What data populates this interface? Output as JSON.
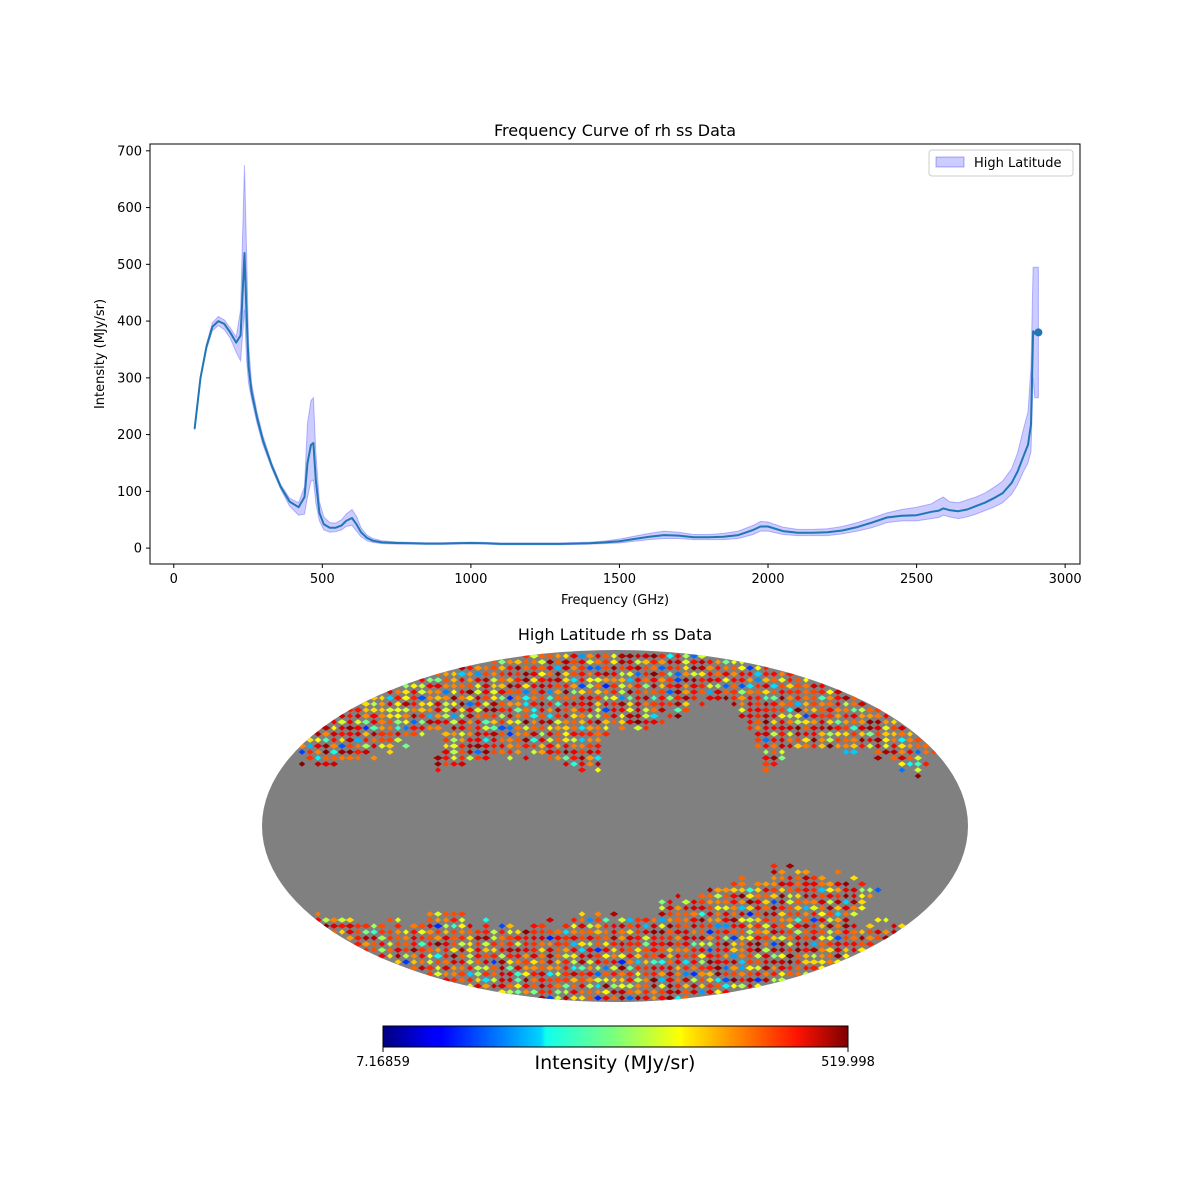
{
  "chart_data": [
    {
      "type": "line",
      "title": "Frequency Curve of rh ss Data",
      "xlabel": "Frequency (GHz)",
      "ylabel": "Intensity (MJy/sr)",
      "xlim": [
        -80,
        3050
      ],
      "ylim": [
        -28,
        712
      ],
      "xticks": [
        0,
        500,
        1000,
        1500,
        2000,
        2500,
        3000
      ],
      "yticks": [
        0,
        100,
        200,
        300,
        400,
        500,
        600,
        700
      ],
      "legend": {
        "location": "top-right",
        "entries": [
          "High Latitude"
        ]
      },
      "band_color": "#0000ff",
      "line_color": "#1f77b4",
      "series": [
        {
          "name": "High Latitude",
          "x": [
            70,
            90,
            110,
            130,
            150,
            170,
            190,
            210,
            225,
            238,
            245,
            252,
            262,
            280,
            300,
            330,
            360,
            390,
            420,
            440,
            450,
            462,
            470,
            478,
            490,
            505,
            525,
            545,
            565,
            580,
            600,
            615,
            630,
            650,
            670,
            700,
            750,
            800,
            850,
            900,
            950,
            1000,
            1050,
            1100,
            1200,
            1300,
            1400,
            1450,
            1500,
            1550,
            1600,
            1650,
            1700,
            1750,
            1800,
            1850,
            1900,
            1950,
            1975,
            2000,
            2050,
            2100,
            2150,
            2200,
            2250,
            2300,
            2350,
            2400,
            2450,
            2500,
            2550,
            2575,
            2590,
            2610,
            2640,
            2670,
            2700,
            2730,
            2760,
            2790,
            2820,
            2840,
            2860,
            2875,
            2885,
            2892,
            2898,
            2903,
            2910
          ],
          "mean": [
            210,
            300,
            355,
            390,
            400,
            395,
            380,
            362,
            375,
            520,
            410,
            320,
            275,
            230,
            190,
            145,
            108,
            82,
            72,
            90,
            150,
            182,
            185,
            120,
            62,
            42,
            36,
            36,
            40,
            48,
            53,
            42,
            28,
            18,
            13,
            10,
            9,
            8.5,
            8,
            8,
            8.5,
            9,
            8.5,
            7.5,
            7.5,
            7.5,
            8.5,
            10,
            12,
            16,
            20,
            23,
            22,
            19,
            19,
            20,
            23,
            32,
            38,
            38,
            30,
            27,
            27,
            28,
            31,
            37,
            45,
            54,
            57,
            58,
            64,
            66,
            70,
            67,
            65,
            68,
            74,
            80,
            88,
            97,
            115,
            135,
            162,
            182,
            218,
            382,
            378,
            380,
            380
          ],
          "upper": [
            212,
            303,
            360,
            397,
            408,
            402,
            388,
            372,
            420,
            675,
            520,
            360,
            290,
            240,
            198,
            150,
            112,
            88,
            80,
            108,
            220,
            260,
            265,
            170,
            82,
            55,
            45,
            44,
            50,
            60,
            68,
            56,
            36,
            23,
            17,
            13,
            11,
            10,
            9.5,
            9.5,
            10,
            10.5,
            10,
            9,
            9,
            9,
            10.5,
            12.5,
            16,
            21,
            26,
            30,
            28,
            24,
            24,
            26,
            30,
            40,
            47,
            46,
            37,
            33,
            33,
            34,
            38,
            45,
            53,
            62,
            68,
            72,
            78,
            86,
            90,
            82,
            80,
            85,
            90,
            97,
            107,
            118,
            140,
            168,
            210,
            240,
            320,
            495,
            495,
            495,
            495
          ],
          "lower": [
            208,
            297,
            350,
            383,
            392,
            385,
            370,
            345,
            330,
            420,
            330,
            290,
            262,
            220,
            182,
            140,
            104,
            74,
            58,
            60,
            90,
            118,
            120,
            80,
            48,
            32,
            28,
            29,
            32,
            38,
            40,
            30,
            20,
            13,
            10,
            8,
            7,
            7,
            6.5,
            6.5,
            7,
            7.5,
            7,
            6,
            6,
            6,
            7,
            8,
            9,
            12,
            15,
            17,
            17,
            15,
            15,
            15,
            17,
            24,
            30,
            30,
            24,
            22,
            22,
            22,
            25,
            30,
            36,
            45,
            48,
            48,
            52,
            54,
            58,
            55,
            52,
            55,
            60,
            66,
            72,
            80,
            95,
            112,
            135,
            150,
            170,
            300,
            265,
            265,
            265
          ]
        }
      ],
      "marker_point": {
        "x": 2910,
        "y": 380
      }
    },
    {
      "type": "heatmap",
      "projection": "mollweide",
      "title": "High Latitude rh ss Data",
      "colormap": "jet",
      "masked_color": "#808080",
      "colorbar": {
        "label": "Intensity (MJy/sr)",
        "min_label": "7.16859",
        "max_label": "519.998",
        "min": 7.16859,
        "max": 519.998
      },
      "data_note": "Galactic plane masked (grey); unmasked high-latitude pixels mostly 300–520 MJy/sr with scattered lower values."
    }
  ]
}
